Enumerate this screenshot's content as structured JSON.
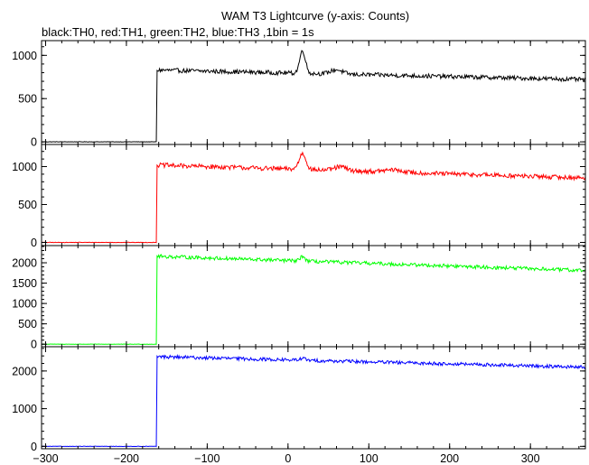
{
  "title": "WAM T3 Lightcurve (y-axis: Counts)",
  "subtitle": "black:TH0, red:TH1, green:TH2, blue:TH3 ,1bin = 1s",
  "chart_data": {
    "type": "line",
    "title": "WAM T3 Lightcurve (y-axis: Counts)",
    "subtitle": "black:TH0, red:TH1, green:TH2, blue:TH3 ,1bin = 1s",
    "xlim": [
      -305,
      368
    ],
    "x_ticks": [
      -300,
      -200,
      -100,
      0,
      100,
      200,
      300
    ],
    "x_tick_labels": [
      "−300",
      "−200",
      "−100",
      "0",
      "100",
      "200",
      "300"
    ],
    "x_step": 1,
    "grid": false,
    "legend": "none",
    "panels": [
      {
        "name": "TH0",
        "color": "#000000",
        "ylim": [
          -20,
          1160
        ],
        "y_ticks": [
          0,
          500,
          1000
        ],
        "y_tick_labels": [
          "0",
          "500",
          "1000"
        ],
        "pre_level": 0,
        "onset_x": -162,
        "level_start": 830,
        "level_end": 720,
        "noise": 25,
        "peaks": [
          {
            "x": 18,
            "amp": 260,
            "width": 5
          },
          {
            "x": 60,
            "amp": 50,
            "width": 10
          }
        ]
      },
      {
        "name": "TH1",
        "color": "#ff0000",
        "ylim": [
          -30,
          1280
        ],
        "y_ticks": [
          0,
          500,
          1000
        ],
        "y_tick_labels": [
          "0",
          "500",
          "1000"
        ],
        "pre_level": 0,
        "onset_x": -162,
        "level_start": 1020,
        "level_end": 850,
        "noise": 30,
        "peaks": [
          {
            "x": 18,
            "amp": 210,
            "width": 6
          },
          {
            "x": 65,
            "amp": 50,
            "width": 10
          },
          {
            "x": 130,
            "amp": 30,
            "width": 15
          }
        ]
      },
      {
        "name": "TH2",
        "color": "#00ff00",
        "ylim": [
          -40,
          2400
        ],
        "y_ticks": [
          0,
          500,
          1000,
          1500,
          2000
        ],
        "y_tick_labels": [
          "0",
          "500",
          "1000",
          "1500",
          "2000"
        ],
        "pre_level": 0,
        "onset_x": -162,
        "level_start": 2160,
        "level_end": 1810,
        "noise": 45,
        "peaks": [
          {
            "x": 18,
            "amp": 120,
            "width": 4
          }
        ]
      },
      {
        "name": "TH3",
        "color": "#0000ff",
        "ylim": [
          -40,
          2620
        ],
        "y_ticks": [
          0,
          1000,
          2000
        ],
        "y_tick_labels": [
          "0",
          "1000",
          "2000"
        ],
        "pre_level": 0,
        "onset_x": -162,
        "level_start": 2380,
        "level_end": 2100,
        "noise": 45,
        "peaks": [
          {
            "x": 18,
            "amp": 60,
            "width": 4
          }
        ]
      }
    ]
  }
}
